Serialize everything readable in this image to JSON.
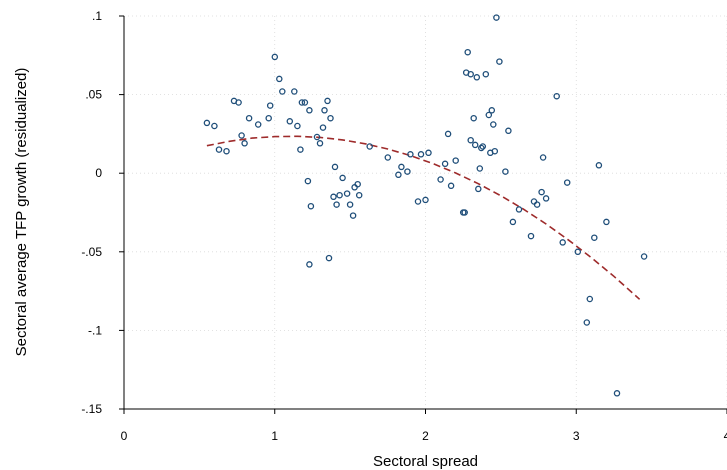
{
  "chart_data": {
    "type": "scatter",
    "title": "",
    "xlabel": "Sectoral spread",
    "ylabel": "Sectoral average TFP growth (residualized)",
    "xlim": [
      0,
      4
    ],
    "ylim": [
      -0.15,
      0.1
    ],
    "x_ticks": [
      0,
      1,
      2,
      3,
      4
    ],
    "x_tick_labels": [
      "0",
      "1",
      "2",
      "3",
      "4"
    ],
    "y_ticks": [
      -0.15,
      -0.1,
      -0.05,
      0,
      0.05,
      0.1
    ],
    "y_tick_labels": [
      "-.15",
      "-.1",
      "-.05",
      "0",
      ".05",
      ".1"
    ],
    "grid": true,
    "series": [
      {
        "kind": "scatter",
        "marker": "hollow-circle",
        "color": "#1f4e79",
        "points": [
          [
            0.55,
            0.032
          ],
          [
            0.6,
            0.03
          ],
          [
            0.63,
            0.015
          ],
          [
            0.68,
            0.014
          ],
          [
            0.73,
            0.046
          ],
          [
            0.76,
            0.045
          ],
          [
            0.78,
            0.024
          ],
          [
            0.8,
            0.019
          ],
          [
            0.83,
            0.035
          ],
          [
            0.89,
            0.031
          ],
          [
            0.96,
            0.035
          ],
          [
            0.97,
            0.043
          ],
          [
            1.0,
            0.074
          ],
          [
            1.03,
            0.06
          ],
          [
            1.05,
            0.052
          ],
          [
            1.1,
            0.033
          ],
          [
            1.13,
            0.052
          ],
          [
            1.15,
            0.03
          ],
          [
            1.17,
            0.015
          ],
          [
            1.18,
            0.045
          ],
          [
            1.2,
            0.045
          ],
          [
            1.22,
            -0.005
          ],
          [
            1.23,
            0.04
          ],
          [
            1.24,
            -0.021
          ],
          [
            1.28,
            0.023
          ],
          [
            1.3,
            0.019
          ],
          [
            1.32,
            0.029
          ],
          [
            1.33,
            0.04
          ],
          [
            1.35,
            0.046
          ],
          [
            1.37,
            0.035
          ],
          [
            1.39,
            -0.015
          ],
          [
            1.4,
            0.004
          ],
          [
            1.41,
            -0.02
          ],
          [
            1.43,
            -0.014
          ],
          [
            1.45,
            -0.003
          ],
          [
            1.48,
            -0.013
          ],
          [
            1.5,
            -0.02
          ],
          [
            1.52,
            -0.027
          ],
          [
            1.53,
            -0.009
          ],
          [
            1.55,
            -0.007
          ],
          [
            1.56,
            -0.014
          ],
          [
            1.23,
            -0.058
          ],
          [
            1.36,
            -0.054
          ],
          [
            1.63,
            0.017
          ],
          [
            1.75,
            0.01
          ],
          [
            1.82,
            -0.001
          ],
          [
            1.84,
            0.004
          ],
          [
            1.88,
            0.001
          ],
          [
            1.9,
            0.012
          ],
          [
            1.95,
            -0.018
          ],
          [
            1.97,
            0.012
          ],
          [
            2.0,
            -0.017
          ],
          [
            2.02,
            0.013
          ],
          [
            2.1,
            -0.004
          ],
          [
            2.13,
            0.006
          ],
          [
            2.15,
            0.025
          ],
          [
            2.17,
            -0.008
          ],
          [
            2.2,
            0.008
          ],
          [
            2.25,
            -0.025
          ],
          [
            2.26,
            -0.025
          ],
          [
            2.27,
            0.064
          ],
          [
            2.28,
            0.077
          ],
          [
            2.3,
            0.021
          ],
          [
            2.3,
            0.063
          ],
          [
            2.32,
            0.035
          ],
          [
            2.33,
            0.018
          ],
          [
            2.34,
            0.061
          ],
          [
            2.35,
            -0.01
          ],
          [
            2.36,
            0.003
          ],
          [
            2.37,
            0.016
          ],
          [
            2.38,
            0.017
          ],
          [
            2.4,
            0.063
          ],
          [
            2.42,
            0.037
          ],
          [
            2.43,
            0.013
          ],
          [
            2.44,
            0.04
          ],
          [
            2.45,
            0.031
          ],
          [
            2.46,
            0.014
          ],
          [
            2.47,
            0.099
          ],
          [
            2.49,
            0.071
          ],
          [
            2.53,
            0.001
          ],
          [
            2.55,
            0.027
          ],
          [
            2.58,
            -0.031
          ],
          [
            2.62,
            -0.023
          ],
          [
            2.7,
            -0.04
          ],
          [
            2.72,
            -0.018
          ],
          [
            2.74,
            -0.02
          ],
          [
            2.77,
            -0.012
          ],
          [
            2.78,
            0.01
          ],
          [
            2.8,
            -0.016
          ],
          [
            2.87,
            0.049
          ],
          [
            2.91,
            -0.044
          ],
          [
            2.94,
            -0.006
          ],
          [
            3.01,
            -0.05
          ],
          [
            3.07,
            -0.095
          ],
          [
            3.09,
            -0.08
          ],
          [
            3.12,
            -0.041
          ],
          [
            3.15,
            0.005
          ],
          [
            3.2,
            -0.031
          ],
          [
            3.27,
            -0.14
          ],
          [
            3.45,
            -0.053
          ]
        ]
      },
      {
        "kind": "line",
        "style": "dashed",
        "color": "#9e2b2b",
        "x": [
          0.55,
          0.7,
          0.85,
          1.0,
          1.15,
          1.3,
          1.45,
          1.6,
          1.75,
          1.9,
          2.05,
          2.2,
          2.35,
          2.5,
          2.65,
          2.8,
          2.95,
          3.1,
          3.25,
          3.42
        ],
        "y": [
          0.0175,
          0.0203,
          0.0223,
          0.0233,
          0.0235,
          0.0228,
          0.0212,
          0.0187,
          0.0154,
          0.0112,
          0.0061,
          0.0001,
          -0.0067,
          -0.0144,
          -0.0229,
          -0.0323,
          -0.0426,
          -0.0537,
          -0.0656,
          -0.0802
        ]
      }
    ]
  }
}
